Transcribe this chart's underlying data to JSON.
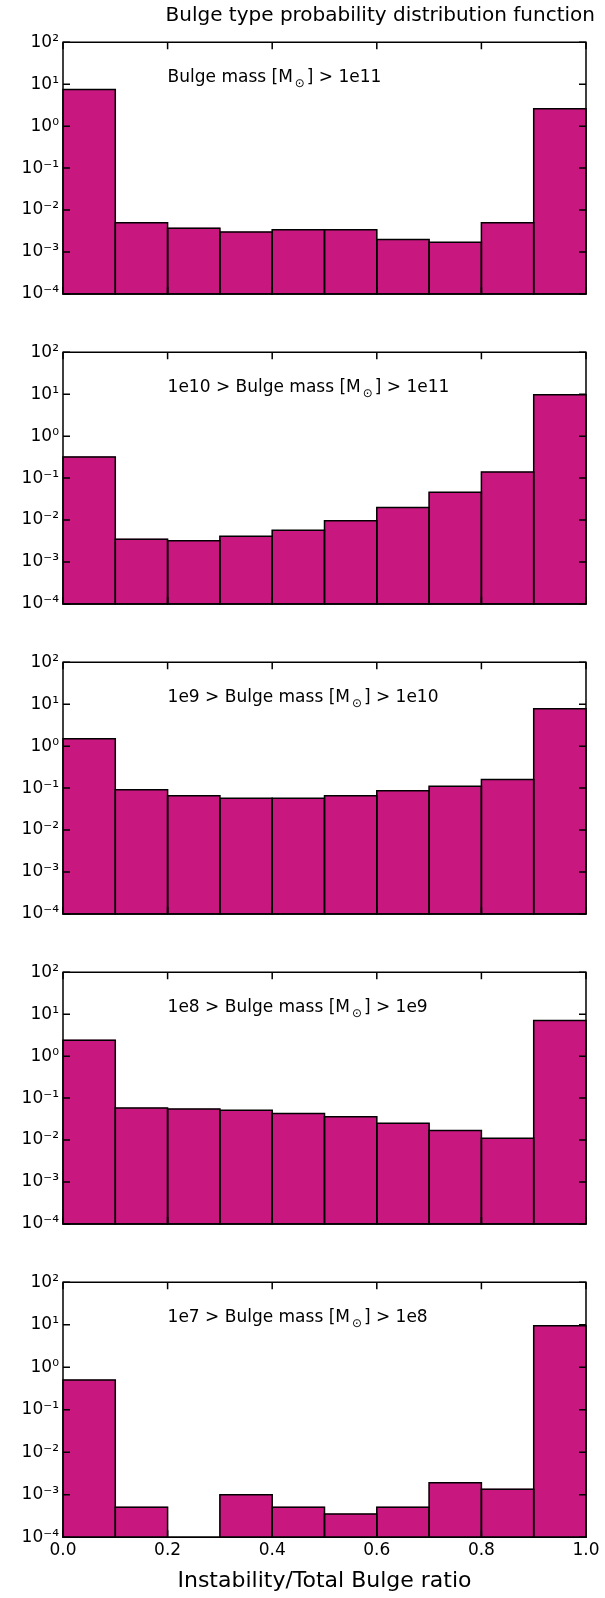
{
  "chart_data": [
    {
      "type": "histogram",
      "title": "Bulge type probability distribution function",
      "bins": [
        0,
        0.1,
        0.2,
        0.3,
        0.4,
        0.5,
        0.6,
        0.7,
        0.8,
        0.9,
        1.0
      ],
      "values": [
        7.5,
        0.005,
        0.0037,
        0.003,
        0.0034,
        0.0034,
        0.002,
        0.0017,
        0.005,
        2.6
      ],
      "color": "#c8177f",
      "log": "y",
      "xlim": [
        0,
        1
      ],
      "xticks": [
        {
          "value": 0,
          "label": null
        },
        {
          "value": 0.2,
          "label": null
        },
        {
          "value": 0.4,
          "label": null
        },
        {
          "value": 0.6,
          "label": null
        },
        {
          "value": 0.8,
          "label": null
        },
        {
          "value": 1,
          "label": null
        }
      ],
      "ylim": [
        0.0001,
        100
      ],
      "yticks": [
        {
          "value": 0.0001,
          "label": "10⁻⁴"
        },
        {
          "value": 0.001,
          "label": "10⁻³"
        },
        {
          "value": 0.01,
          "label": "10⁻²"
        },
        {
          "value": 0.1,
          "label": "10⁻¹"
        },
        {
          "value": 1,
          "label": "10⁰"
        },
        {
          "value": 10,
          "label": "10¹"
        },
        {
          "value": 100,
          "label": "10²"
        }
      ],
      "tick_labels": "y",
      "annotations": [
        "Bulge mass [M$_{⊙}$] > 1e11"
      ]
    },
    {
      "type": "histogram",
      "bins": [
        0,
        0.1,
        0.2,
        0.3,
        0.4,
        0.5,
        0.6,
        0.7,
        0.8,
        0.9,
        1.0
      ],
      "values": [
        0.32,
        0.0035,
        0.0032,
        0.0041,
        0.0057,
        0.0096,
        0.02,
        0.046,
        0.14,
        9.7
      ],
      "color": "#c8177f",
      "log": "y",
      "xlim": [
        0,
        1
      ],
      "xticks": [
        {
          "value": 0,
          "label": null
        },
        {
          "value": 0.2,
          "label": null
        },
        {
          "value": 0.4,
          "label": null
        },
        {
          "value": 0.6,
          "label": null
        },
        {
          "value": 0.8,
          "label": null
        },
        {
          "value": 1,
          "label": null
        }
      ],
      "ylim": [
        0.0001,
        100
      ],
      "yticks": [
        {
          "value": 0.0001,
          "label": "10⁻⁴"
        },
        {
          "value": 0.001,
          "label": "10⁻³"
        },
        {
          "value": 0.01,
          "label": "10⁻²"
        },
        {
          "value": 0.1,
          "label": "10⁻¹"
        },
        {
          "value": 1,
          "label": "10⁰"
        },
        {
          "value": 10,
          "label": "10¹"
        },
        {
          "value": 100,
          "label": "10²"
        }
      ],
      "tick_labels": "y",
      "annotations": [
        "1e10 > Bulge mass [M$_{⊙}$] > 1e11"
      ]
    },
    {
      "type": "histogram",
      "bins": [
        0,
        0.1,
        0.2,
        0.3,
        0.4,
        0.5,
        0.6,
        0.7,
        0.8,
        0.9,
        1.0
      ],
      "values": [
        1.5,
        0.091,
        0.066,
        0.057,
        0.057,
        0.066,
        0.086,
        0.11,
        0.16,
        7.8
      ],
      "color": "#c8177f",
      "log": "y",
      "xlim": [
        0,
        1
      ],
      "xticks": [
        {
          "value": 0,
          "label": null
        },
        {
          "value": 0.2,
          "label": null
        },
        {
          "value": 0.4,
          "label": null
        },
        {
          "value": 0.6,
          "label": null
        },
        {
          "value": 0.8,
          "label": null
        },
        {
          "value": 1,
          "label": null
        }
      ],
      "ylim": [
        0.0001,
        100
      ],
      "yticks": [
        {
          "value": 0.0001,
          "label": "10⁻⁴"
        },
        {
          "value": 0.001,
          "label": "10⁻³"
        },
        {
          "value": 0.01,
          "label": "10⁻²"
        },
        {
          "value": 0.1,
          "label": "10⁻¹"
        },
        {
          "value": 1,
          "label": "10⁰"
        },
        {
          "value": 10,
          "label": "10¹"
        },
        {
          "value": 100,
          "label": "10²"
        }
      ],
      "tick_labels": "y",
      "annotations": [
        "1e9 > Bulge mass [M$_{⊙}$] > 1e10"
      ]
    },
    {
      "type": "histogram",
      "bins": [
        0,
        0.1,
        0.2,
        0.3,
        0.4,
        0.5,
        0.6,
        0.7,
        0.8,
        0.9,
        1.0
      ],
      "values": [
        2.4,
        0.058,
        0.055,
        0.051,
        0.043,
        0.036,
        0.025,
        0.017,
        0.011,
        7.1
      ],
      "color": "#c8177f",
      "log": "y",
      "xlim": [
        0,
        1
      ],
      "xticks": [
        {
          "value": 0,
          "label": null
        },
        {
          "value": 0.2,
          "label": null
        },
        {
          "value": 0.4,
          "label": null
        },
        {
          "value": 0.6,
          "label": null
        },
        {
          "value": 0.8,
          "label": null
        },
        {
          "value": 1,
          "label": null
        }
      ],
      "ylim": [
        0.0001,
        100
      ],
      "yticks": [
        {
          "value": 0.0001,
          "label": "10⁻⁴"
        },
        {
          "value": 0.001,
          "label": "10⁻³"
        },
        {
          "value": 0.01,
          "label": "10⁻²"
        },
        {
          "value": 0.1,
          "label": "10⁻¹"
        },
        {
          "value": 1,
          "label": "10⁰"
        },
        {
          "value": 10,
          "label": "10¹"
        },
        {
          "value": 100,
          "label": "10²"
        }
      ],
      "tick_labels": "y",
      "annotations": [
        "1e8 > Bulge mass [M$_{⊙}$] > 1e9"
      ]
    },
    {
      "type": "histogram",
      "xlabel": "Instability/Total Bulge ratio",
      "bins": [
        0,
        0.1,
        0.2,
        0.3,
        0.4,
        0.5,
        0.6,
        0.7,
        0.8,
        0.9,
        1.0
      ],
      "values": [
        0.5,
        0.00051,
        null,
        0.001,
        0.00051,
        0.00035,
        0.00051,
        0.0019,
        0.00135,
        9.5
      ],
      "color": "#c8177f",
      "log": "y",
      "xlim": [
        0,
        1
      ],
      "xticks": [
        {
          "value": 0,
          "label": "0.0"
        },
        {
          "value": 0.2,
          "label": "0.2"
        },
        {
          "value": 0.4,
          "label": "0.4"
        },
        {
          "value": 0.6,
          "label": "0.6"
        },
        {
          "value": 0.8,
          "label": "0.8"
        },
        {
          "value": 1,
          "label": "1.0"
        }
      ],
      "ylim": [
        0.0001,
        100
      ],
      "yticks": [
        {
          "value": 0.0001,
          "label": "10⁻⁴"
        },
        {
          "value": 0.001,
          "label": "10⁻³"
        },
        {
          "value": 0.01,
          "label": "10⁻²"
        },
        {
          "value": 0.1,
          "label": "10⁻¹"
        },
        {
          "value": 1,
          "label": "10⁰"
        },
        {
          "value": 10,
          "label": "10¹"
        },
        {
          "value": 100,
          "label": "10²"
        }
      ],
      "annotations": [
        "1e7 > Bulge mass [M$_{⊙}$] > 1e8"
      ]
    }
  ]
}
